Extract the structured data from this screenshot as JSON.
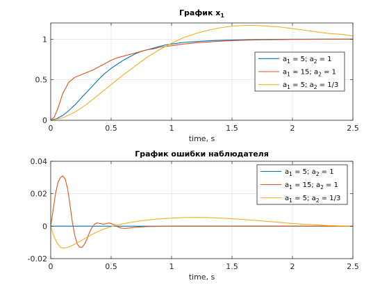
{
  "chart_data": [
    {
      "type": "line",
      "title": "График x",
      "title_subscript": "1",
      "xlabel": "time, s",
      "ylabel": "",
      "xlim": [
        0,
        2.5
      ],
      "ylim": [
        0,
        1.2
      ],
      "xticks": [
        0,
        0.5,
        1,
        1.5,
        2,
        2.5
      ],
      "xtick_labels": [
        "0",
        "0.5",
        "1",
        "1.5",
        "2",
        "2.5"
      ],
      "yticks": [
        0,
        0.5,
        1
      ],
      "ytick_labels": [
        "0",
        "0.5",
        "1"
      ],
      "grid": true,
      "legend_position": "right",
      "series": [
        {
          "legend": [
            [
              "a",
              "1",
              " = 5; "
            ],
            [
              "a",
              "2",
              " = 1"
            ]
          ],
          "color": "#0072BD",
          "x": [
            0,
            0.05,
            0.1,
            0.15,
            0.2,
            0.25,
            0.3,
            0.35,
            0.4,
            0.45,
            0.5,
            0.55,
            0.6,
            0.65,
            0.7,
            0.75,
            0.8,
            0.85,
            0.9,
            0.95,
            1,
            1.1,
            1.2,
            1.3,
            1.4,
            1.5,
            1.6,
            1.7,
            1.8,
            1.9,
            2,
            2.25,
            2.5
          ],
          "y": [
            0,
            0.02,
            0.06,
            0.12,
            0.19,
            0.27,
            0.35,
            0.43,
            0.51,
            0.58,
            0.64,
            0.69,
            0.74,
            0.78,
            0.82,
            0.85,
            0.87,
            0.89,
            0.91,
            0.93,
            0.94,
            0.96,
            0.97,
            0.98,
            0.985,
            0.99,
            0.993,
            0.995,
            0.997,
            0.998,
            0.999,
            1.0,
            1.0
          ]
        },
        {
          "legend": [
            [
              "a",
              "1",
              " = 15; "
            ],
            [
              "a",
              "2",
              " = 1"
            ]
          ],
          "color": "#D95319",
          "x": [
            0,
            0.03,
            0.06,
            0.1,
            0.15,
            0.2,
            0.25,
            0.3,
            0.35,
            0.4,
            0.45,
            0.5,
            0.55,
            0.6,
            0.65,
            0.7,
            0.75,
            0.8,
            0.85,
            0.9,
            1,
            1.1,
            1.2,
            1.3,
            1.4,
            1.5,
            1.6,
            1.8,
            2,
            2.25,
            2.5
          ],
          "y": [
            0,
            0.04,
            0.15,
            0.33,
            0.47,
            0.53,
            0.56,
            0.59,
            0.62,
            0.66,
            0.7,
            0.74,
            0.77,
            0.79,
            0.81,
            0.83,
            0.85,
            0.87,
            0.88,
            0.9,
            0.92,
            0.94,
            0.955,
            0.965,
            0.975,
            0.982,
            0.987,
            0.993,
            0.997,
            0.999,
            1.0
          ]
        },
        {
          "legend": [
            [
              "a",
              "1",
              " = 5; "
            ],
            [
              "a",
              "2",
              " = 1/3"
            ]
          ],
          "color": "#EDB120",
          "x": [
            0,
            0.1,
            0.2,
            0.3,
            0.4,
            0.5,
            0.6,
            0.7,
            0.8,
            0.9,
            1,
            1.1,
            1.2,
            1.3,
            1.4,
            1.5,
            1.6,
            1.7,
            1.8,
            1.9,
            2,
            2.1,
            2.2,
            2.3,
            2.4,
            2.5
          ],
          "y": [
            0,
            0.03,
            0.1,
            0.2,
            0.32,
            0.44,
            0.56,
            0.67,
            0.78,
            0.87,
            0.95,
            1.02,
            1.07,
            1.11,
            1.14,
            1.16,
            1.17,
            1.17,
            1.16,
            1.15,
            1.13,
            1.11,
            1.09,
            1.07,
            1.06,
            1.04
          ]
        }
      ]
    },
    {
      "type": "line",
      "title": "График ошибки наблюдателя",
      "xlabel": "time, s",
      "ylabel": "",
      "xlim": [
        0,
        2.5
      ],
      "ylim": [
        -0.02,
        0.04
      ],
      "xticks": [
        0,
        0.5,
        1,
        1.5,
        2,
        2.5
      ],
      "xtick_labels": [
        "0",
        "0.5",
        "1",
        "1.5",
        "2",
        "2.5"
      ],
      "yticks": [
        -0.02,
        0,
        0.02,
        0.04
      ],
      "ytick_labels": [
        "-0.02",
        "0",
        "0.02",
        "0.04"
      ],
      "grid": true,
      "legend_position": "top-right",
      "series": [
        {
          "legend": [
            [
              "a",
              "1",
              " = 5; "
            ],
            [
              "a",
              "2",
              " = 1"
            ]
          ],
          "color": "#0072BD",
          "x": [
            0,
            0.5,
            1,
            1.5,
            2,
            2.5
          ],
          "y": [
            0,
            0,
            0,
            0,
            0,
            0
          ]
        },
        {
          "legend": [
            [
              "a",
              "1",
              " = 15; "
            ],
            [
              "a",
              "2",
              " = 1"
            ]
          ],
          "color": "#D95319",
          "x": [
            0,
            0.02,
            0.04,
            0.06,
            0.08,
            0.1,
            0.12,
            0.14,
            0.16,
            0.18,
            0.2,
            0.22,
            0.24,
            0.26,
            0.28,
            0.3,
            0.32,
            0.34,
            0.36,
            0.38,
            0.4,
            0.42,
            0.44,
            0.46,
            0.48,
            0.5,
            0.52,
            0.54,
            0.56,
            0.58,
            0.6,
            0.62,
            0.65,
            0.7,
            0.75,
            0.8,
            0.9,
            1,
            1.2,
            1.5,
            2,
            2.5
          ],
          "y": [
            0,
            0.01,
            0.02,
            0.027,
            0.03,
            0.031,
            0.029,
            0.023,
            0.013,
            0.002,
            -0.006,
            -0.011,
            -0.013,
            -0.013,
            -0.011,
            -0.008,
            -0.004,
            -0.001,
            0.001,
            0.002,
            0.0018,
            0.0015,
            0.0012,
            0.0016,
            0.002,
            0.0017,
            0.001,
            0.0002,
            -0.0006,
            -0.0011,
            -0.0013,
            -0.0013,
            -0.0011,
            -0.0007,
            -0.0004,
            -0.0002,
            -0.0001,
            0,
            0,
            0,
            0,
            0
          ]
        },
        {
          "legend": [
            [
              "a",
              "1",
              " = 5; "
            ],
            [
              "a",
              "2",
              " = 1/3"
            ]
          ],
          "color": "#EDB120",
          "x": [
            0,
            0.02,
            0.05,
            0.08,
            0.1,
            0.13,
            0.16,
            0.2,
            0.25,
            0.3,
            0.35,
            0.4,
            0.45,
            0.5,
            0.55,
            0.6,
            0.65,
            0.7,
            0.8,
            0.9,
            1,
            1.1,
            1.2,
            1.3,
            1.4,
            1.5,
            1.6,
            1.7,
            1.8,
            1.9,
            2,
            2.1,
            2.2,
            2.3,
            2.4,
            2.5
          ],
          "y": [
            0,
            -0.005,
            -0.01,
            -0.013,
            -0.0135,
            -0.0133,
            -0.0125,
            -0.011,
            -0.009,
            -0.0068,
            -0.0048,
            -0.003,
            -0.0015,
            -0.0003,
            0.0007,
            0.0015,
            0.0022,
            0.0028,
            0.0038,
            0.0045,
            0.005,
            0.0053,
            0.0054,
            0.0053,
            0.005,
            0.0046,
            0.0041,
            0.0035,
            0.0029,
            0.0023,
            0.0017,
            0.0012,
            0.0008,
            0.0004,
            0.0002,
            0.0001
          ]
        }
      ]
    }
  ]
}
